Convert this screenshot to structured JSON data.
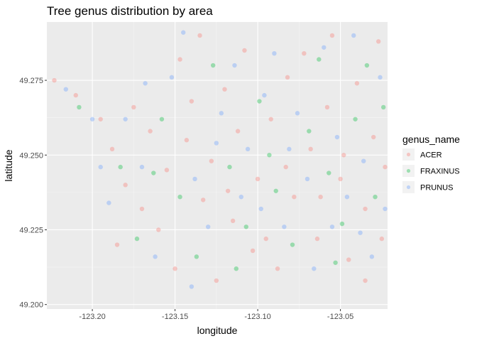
{
  "chart_data": {
    "type": "scatter",
    "title": "Tree genus distribution by area",
    "xlabel": "longitude",
    "ylabel": "latitude",
    "xlim": [
      -123.2275,
      -123.0215
    ],
    "ylim": [
      49.1985,
      49.2945
    ],
    "xticks": [
      {
        "value": -123.2,
        "label": "-123.20"
      },
      {
        "value": -123.15,
        "label": "-123.15"
      },
      {
        "value": -123.1,
        "label": "-123.10"
      },
      {
        "value": -123.05,
        "label": "-123.05"
      }
    ],
    "yticks": [
      {
        "value": 49.2,
        "label": "49.200"
      },
      {
        "value": 49.225,
        "label": "49.225"
      },
      {
        "value": 49.25,
        "label": "49.250"
      },
      {
        "value": 49.275,
        "label": "49.275"
      }
    ],
    "grid": true,
    "legend": {
      "title": "genus_name",
      "position": "right"
    },
    "series": [
      {
        "name": "ACER",
        "color": "#F8766D",
        "points": [
          [
            -123.223,
            49.275
          ],
          [
            -123.21,
            49.27
          ],
          [
            -123.195,
            49.262
          ],
          [
            -123.188,
            49.252
          ],
          [
            -123.18,
            49.24
          ],
          [
            -123.17,
            49.232
          ],
          [
            -123.165,
            49.258
          ],
          [
            -123.16,
            49.225
          ],
          [
            -123.155,
            49.245
          ],
          [
            -123.15,
            49.212
          ],
          [
            -123.147,
            49.282
          ],
          [
            -123.14,
            49.268
          ],
          [
            -123.135,
            49.29
          ],
          [
            -123.133,
            49.235
          ],
          [
            -123.128,
            49.248
          ],
          [
            -123.125,
            49.208
          ],
          [
            -123.12,
            49.272
          ],
          [
            -123.115,
            49.228
          ],
          [
            -123.112,
            49.258
          ],
          [
            -123.108,
            49.285
          ],
          [
            -123.1,
            49.242
          ],
          [
            -123.095,
            49.222
          ],
          [
            -123.092,
            49.262
          ],
          [
            -123.088,
            49.212
          ],
          [
            -123.082,
            49.276
          ],
          [
            -123.078,
            49.236
          ],
          [
            -123.072,
            49.284
          ],
          [
            -123.068,
            49.252
          ],
          [
            -123.064,
            49.222
          ],
          [
            -123.058,
            49.266
          ],
          [
            -123.055,
            49.29
          ],
          [
            -123.05,
            49.242
          ],
          [
            -123.045,
            49.215
          ],
          [
            -123.04,
            49.274
          ],
          [
            -123.035,
            49.232
          ],
          [
            -123.03,
            49.256
          ],
          [
            -123.027,
            49.288
          ],
          [
            -123.025,
            49.222
          ],
          [
            -123.023,
            49.246
          ],
          [
            -123.035,
            49.208
          ],
          [
            -123.048,
            49.25
          ],
          [
            -123.185,
            49.22
          ],
          [
            -123.175,
            49.266
          ],
          [
            -123.143,
            49.255
          ],
          [
            -123.118,
            49.238
          ],
          [
            -123.103,
            49.218
          ],
          [
            -123.083,
            49.246
          ],
          [
            -123.062,
            49.236
          ]
        ]
      },
      {
        "name": "FRAXINUS",
        "color": "#00BA38",
        "points": [
          [
            -123.208,
            49.266
          ],
          [
            -123.183,
            49.246
          ],
          [
            -123.173,
            49.222
          ],
          [
            -123.158,
            49.262
          ],
          [
            -123.147,
            49.236
          ],
          [
            -123.137,
            49.216
          ],
          [
            -123.127,
            49.28
          ],
          [
            -123.117,
            49.246
          ],
          [
            -123.107,
            49.226
          ],
          [
            -123.099,
            49.268
          ],
          [
            -123.089,
            49.238
          ],
          [
            -123.079,
            49.22
          ],
          [
            -123.069,
            49.258
          ],
          [
            -123.063,
            49.282
          ],
          [
            -123.057,
            49.244
          ],
          [
            -123.049,
            49.227
          ],
          [
            -123.041,
            49.262
          ],
          [
            -123.034,
            49.28
          ],
          [
            -123.029,
            49.236
          ],
          [
            -123.024,
            49.266
          ],
          [
            -123.053,
            49.214
          ],
          [
            -123.113,
            49.212
          ],
          [
            -123.163,
            49.244
          ],
          [
            -123.093,
            49.25
          ]
        ]
      },
      {
        "name": "PRUNUS",
        "color": "#619CFF",
        "points": [
          [
            -123.216,
            49.272
          ],
          [
            -123.2,
            49.262
          ],
          [
            -123.19,
            49.234
          ],
          [
            -123.18,
            49.262
          ],
          [
            -123.17,
            49.246
          ],
          [
            -123.162,
            49.216
          ],
          [
            -123.152,
            49.276
          ],
          [
            -123.145,
            49.291
          ],
          [
            -123.138,
            49.242
          ],
          [
            -123.13,
            49.226
          ],
          [
            -123.122,
            49.264
          ],
          [
            -123.114,
            49.28
          ],
          [
            -123.106,
            49.252
          ],
          [
            -123.098,
            49.232
          ],
          [
            -123.09,
            49.284
          ],
          [
            -123.084,
            49.226
          ],
          [
            -123.076,
            49.264
          ],
          [
            -123.07,
            49.242
          ],
          [
            -123.066,
            49.212
          ],
          [
            -123.06,
            49.286
          ],
          [
            -123.052,
            49.256
          ],
          [
            -123.046,
            49.236
          ],
          [
            -123.042,
            49.29
          ],
          [
            -123.036,
            49.248
          ],
          [
            -123.031,
            49.216
          ],
          [
            -123.026,
            49.276
          ],
          [
            -123.023,
            49.232
          ],
          [
            -123.195,
            49.246
          ],
          [
            -123.14,
            49.206
          ],
          [
            -123.11,
            49.236
          ],
          [
            -123.081,
            49.252
          ],
          [
            -123.055,
            49.226
          ],
          [
            -123.125,
            49.254
          ],
          [
            -123.168,
            49.274
          ],
          [
            -123.096,
            49.27
          ],
          [
            -123.038,
            49.224
          ]
        ]
      }
    ]
  }
}
